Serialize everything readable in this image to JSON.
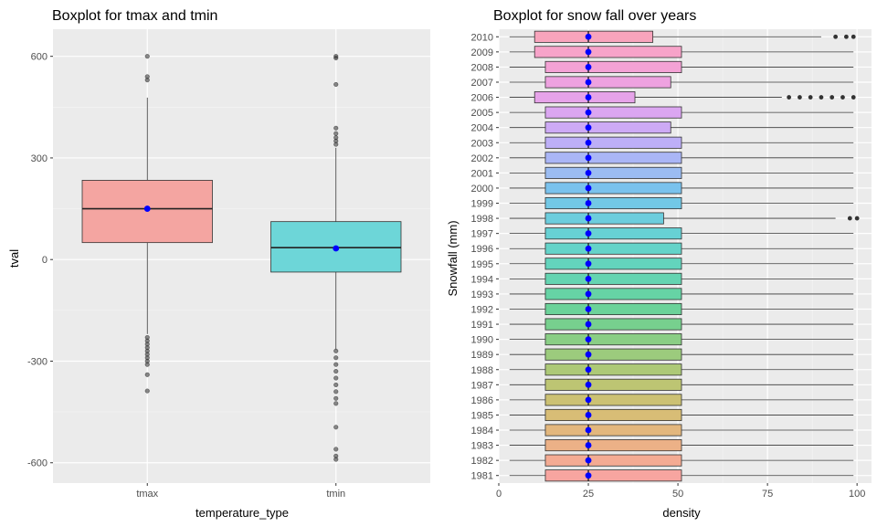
{
  "chart_data": [
    {
      "type": "boxplot",
      "title": "Boxplot for tmax and tmin",
      "xlabel": "temperature_type",
      "ylabel": "tval",
      "ylim": [
        -660,
        680
      ],
      "yticks": [
        -600,
        -300,
        0,
        300,
        600
      ],
      "categories": [
        "tmax",
        "tmin"
      ],
      "boxes": [
        {
          "name": "tmax",
          "min": -220,
          "q1": 50,
          "median": 150,
          "q3": 234,
          "max": 478,
          "mean": 150,
          "fill": "#f4a5a1",
          "outliers": [
            600,
            540,
            530,
            -230,
            -240,
            -250,
            -260,
            -270,
            -280,
            -290,
            -300,
            -310,
            -340,
            -388
          ]
        },
        {
          "name": "tmin",
          "min": -265,
          "q1": -37,
          "median": 35,
          "q3": 112,
          "max": 330,
          "mean": 33,
          "fill": "#6dd6d8",
          "outliers": [
            600,
            595,
            517,
            388,
            372,
            360,
            350,
            340,
            -270,
            -290,
            -310,
            -330,
            -350,
            -370,
            -390,
            -410,
            -425,
            -495,
            -560,
            -580,
            -590
          ]
        }
      ],
      "mean_color": "#0000ff",
      "grid": true,
      "legend": "none"
    },
    {
      "type": "boxplot",
      "orientation": "horizontal",
      "title": "Boxplot for snow fall over years",
      "xlabel": "density",
      "ylabel": "Snowfall (mm)",
      "xlim": [
        0,
        102
      ],
      "xticks": [
        0,
        25,
        50,
        75,
        100
      ],
      "categories": [
        "1981",
        "1982",
        "1983",
        "1984",
        "1985",
        "1986",
        "1987",
        "1988",
        "1989",
        "1990",
        "1991",
        "1992",
        "1993",
        "1994",
        "1995",
        "1996",
        "1997",
        "1998",
        "1999",
        "2000",
        "2001",
        "2002",
        "2003",
        "2004",
        "2005",
        "2006",
        "2007",
        "2008",
        "2009",
        "2010"
      ],
      "boxes": [
        {
          "year": "1981",
          "min": 3,
          "q1": 13,
          "median": 25,
          "q3": 51,
          "max": 99,
          "mean": 25,
          "fill": "#f7a5a0",
          "outliers": []
        },
        {
          "year": "1982",
          "min": 3,
          "q1": 13,
          "median": 25,
          "q3": 51,
          "max": 99,
          "mean": 25,
          "fill": "#f4ab93",
          "outliers": []
        },
        {
          "year": "1983",
          "min": 3,
          "q1": 13,
          "median": 25,
          "q3": 51,
          "max": 99,
          "mean": 25,
          "fill": "#ecb187",
          "outliers": []
        },
        {
          "year": "1984",
          "min": 3,
          "q1": 13,
          "median": 25,
          "q3": 51,
          "max": 99,
          "mean": 25,
          "fill": "#e3b77d",
          "outliers": []
        },
        {
          "year": "1985",
          "min": 3,
          "q1": 13,
          "median": 25,
          "q3": 51,
          "max": 99,
          "mean": 25,
          "fill": "#d8bd76",
          "outliers": []
        },
        {
          "year": "1986",
          "min": 3,
          "q1": 13,
          "median": 25,
          "q3": 51,
          "max": 99,
          "mean": 25,
          "fill": "#ccc173",
          "outliers": []
        },
        {
          "year": "1987",
          "min": 3,
          "q1": 13,
          "median": 25,
          "q3": 51,
          "max": 99,
          "mean": 25,
          "fill": "#bdc573",
          "outliers": []
        },
        {
          "year": "1988",
          "min": 3,
          "q1": 13,
          "median": 25,
          "q3": 51,
          "max": 99,
          "mean": 25,
          "fill": "#adc977",
          "outliers": []
        },
        {
          "year": "1989",
          "min": 3,
          "q1": 13,
          "median": 25,
          "q3": 51,
          "max": 99,
          "mean": 25,
          "fill": "#9ccb7d",
          "outliers": []
        },
        {
          "year": "1990",
          "min": 3,
          "q1": 13,
          "median": 25,
          "q3": 51,
          "max": 99,
          "mean": 25,
          "fill": "#8ace85",
          "outliers": []
        },
        {
          "year": "1991",
          "min": 3,
          "q1": 13,
          "median": 25,
          "q3": 51,
          "max": 99,
          "mean": 25,
          "fill": "#77d08e",
          "outliers": []
        },
        {
          "year": "1992",
          "min": 3,
          "q1": 13,
          "median": 25,
          "q3": 51,
          "max": 99,
          "mean": 25,
          "fill": "#6bd299",
          "outliers": []
        },
        {
          "year": "1993",
          "min": 3,
          "q1": 13,
          "median": 25,
          "q3": 51,
          "max": 99,
          "mean": 25,
          "fill": "#66d3a5",
          "outliers": []
        },
        {
          "year": "1994",
          "min": 3,
          "q1": 13,
          "median": 25,
          "q3": 51,
          "max": 99,
          "mean": 25,
          "fill": "#64d4b1",
          "outliers": []
        },
        {
          "year": "1995",
          "min": 3,
          "q1": 13,
          "median": 25,
          "q3": 51,
          "max": 99,
          "mean": 25,
          "fill": "#63d4bd",
          "outliers": []
        },
        {
          "year": "1996",
          "min": 3,
          "q1": 13,
          "median": 25,
          "q3": 51,
          "max": 99,
          "mean": 25,
          "fill": "#64d3c9",
          "outliers": []
        },
        {
          "year": "1997",
          "min": 3,
          "q1": 13,
          "median": 25,
          "q3": 51,
          "max": 99,
          "mean": 25,
          "fill": "#67d1d4",
          "outliers": []
        },
        {
          "year": "1998",
          "min": 3,
          "q1": 13,
          "median": 25,
          "q3": 46,
          "max": 94,
          "mean": 25,
          "fill": "#6ccddd",
          "outliers": [
            98,
            100
          ]
        },
        {
          "year": "1999",
          "min": 3,
          "q1": 13,
          "median": 25,
          "q3": 51,
          "max": 99,
          "mean": 25,
          "fill": "#72c8e6",
          "outliers": []
        },
        {
          "year": "2000",
          "min": 3,
          "q1": 13,
          "median": 25,
          "q3": 51,
          "max": 99,
          "mean": 25,
          "fill": "#7ac2ed",
          "outliers": []
        },
        {
          "year": "2001",
          "min": 3,
          "q1": 13,
          "median": 25,
          "q3": 51,
          "max": 99,
          "mean": 25,
          "fill": "#9bbcf2",
          "outliers": []
        },
        {
          "year": "2002",
          "min": 3,
          "q1": 13,
          "median": 25,
          "q3": 51,
          "max": 99,
          "mean": 25,
          "fill": "#aab6f6",
          "outliers": []
        },
        {
          "year": "2003",
          "min": 3,
          "q1": 13,
          "median": 25,
          "q3": 51,
          "max": 99,
          "mean": 25,
          "fill": "#bdaff7",
          "outliers": []
        },
        {
          "year": "2004",
          "min": 3,
          "q1": 13,
          "median": 25,
          "q3": 48,
          "max": 99,
          "mean": 25,
          "fill": "#cdaaf5",
          "outliers": []
        },
        {
          "year": "2005",
          "min": 3,
          "q1": 13,
          "median": 25,
          "q3": 51,
          "max": 99,
          "mean": 25,
          "fill": "#dba6f1",
          "outliers": []
        },
        {
          "year": "2006",
          "min": 3,
          "q1": 10,
          "median": 25,
          "q3": 38,
          "max": 79,
          "mean": 25,
          "fill": "#e6a3e9",
          "outliers": [
            81,
            84,
            87,
            90,
            93,
            96,
            99
          ]
        },
        {
          "year": "2007",
          "min": 3,
          "q1": 13,
          "median": 25,
          "q3": 48,
          "max": 99,
          "mean": 25,
          "fill": "#eea2e0",
          "outliers": []
        },
        {
          "year": "2008",
          "min": 3,
          "q1": 13,
          "median": 25,
          "q3": 51,
          "max": 99,
          "mean": 25,
          "fill": "#f4a2d5",
          "outliers": []
        },
        {
          "year": "2009",
          "min": 3,
          "q1": 10,
          "median": 25,
          "q3": 51,
          "max": 99,
          "mean": 25,
          "fill": "#f7a3c9",
          "outliers": []
        },
        {
          "year": "2010",
          "min": 3,
          "q1": 10,
          "median": 25,
          "q3": 43,
          "max": 90,
          "mean": 25,
          "fill": "#f8a4bc",
          "outliers": [
            94,
            97,
            99
          ]
        }
      ],
      "mean_color": "#0000ff",
      "grid": true,
      "legend": "none"
    }
  ]
}
